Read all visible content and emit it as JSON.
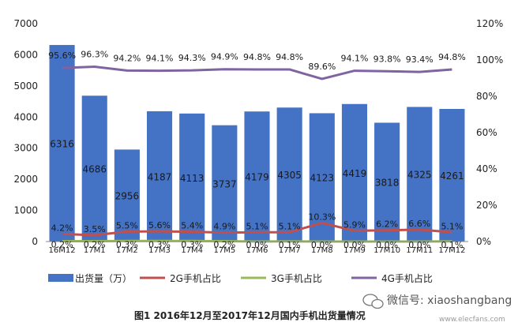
{
  "chart_data": {
    "type": "bar",
    "categories": [
      "16M12",
      "17M1",
      "17M2",
      "17M3",
      "17M4",
      "17M5",
      "17M6",
      "17M7",
      "17M8",
      "17M9",
      "17M10",
      "17M11",
      "17M12"
    ],
    "ylim": [
      0,
      7000
    ],
    "y_ticks": [
      "0",
      "1000",
      "2000",
      "3000",
      "4000",
      "5000",
      "6000",
      "7000"
    ],
    "y2lim": [
      0,
      120
    ],
    "y2_ticks": [
      "0%",
      "20%",
      "40%",
      "60%",
      "80%",
      "100%",
      "120%"
    ],
    "legend_position": "bottom",
    "series": [
      {
        "name": "出货量（万）",
        "type": "bar",
        "axis": "left",
        "color": "#4472c4",
        "values": [
          6316,
          4686,
          2956,
          4187,
          4113,
          3737,
          4179,
          4305,
          4123,
          4419,
          3818,
          4325,
          4261
        ],
        "labels": [
          "6316",
          "4686",
          "2956",
          "4187",
          "4113",
          "3737",
          "4179",
          "4305",
          "4123",
          "4419",
          "3818",
          "4325",
          "4261"
        ]
      },
      {
        "name": "2G手机占比",
        "type": "line",
        "axis": "right",
        "color": "#c0504d",
        "values": [
          4.2,
          3.5,
          5.5,
          5.6,
          5.4,
          4.9,
          5.1,
          5.1,
          10.3,
          5.9,
          6.2,
          6.6,
          5.1
        ],
        "labels": [
          "4.2%",
          "3.5%",
          "5.5%",
          "5.6%",
          "5.4%",
          "4.9%",
          "5.1%",
          "5.1%",
          "10.3%",
          "5.9%",
          "6.2%",
          "6.6%",
          "5.1%"
        ]
      },
      {
        "name": "3G手机占比",
        "type": "line",
        "axis": "right",
        "color": "#9bbb59",
        "values": [
          0.2,
          0.2,
          0.3,
          0.3,
          0.3,
          0.2,
          0.0,
          0.1,
          0.0,
          0.0,
          0.0,
          0.0,
          0.1
        ],
        "labels": [
          "0.2%",
          "0.2%",
          "0.3%",
          "0.3%",
          "0.3%",
          "0.2%",
          "0.0%",
          "0.1%",
          "0.0%",
          "0.0%",
          "0.0%",
          "0.0%",
          "0.1%"
        ]
      },
      {
        "name": "4G手机占比",
        "type": "line",
        "axis": "right",
        "color": "#8064a2",
        "values": [
          95.6,
          96.3,
          94.2,
          94.1,
          94.3,
          94.9,
          94.8,
          94.8,
          89.6,
          94.1,
          93.8,
          93.4,
          94.8
        ],
        "labels": [
          "95.6%",
          "96.3%",
          "94.2%",
          "94.1%",
          "94.3%",
          "94.9%",
          "94.8%",
          "94.8%",
          "89.6%",
          "94.1%",
          "93.8%",
          "93.4%",
          "94.8%"
        ]
      }
    ]
  },
  "caption": "图1  2016年12月至2017年12月国内手机出货量情况",
  "watermark": {
    "text": "微信号: xiaoshangbang",
    "site": "www.elecfans.com"
  }
}
